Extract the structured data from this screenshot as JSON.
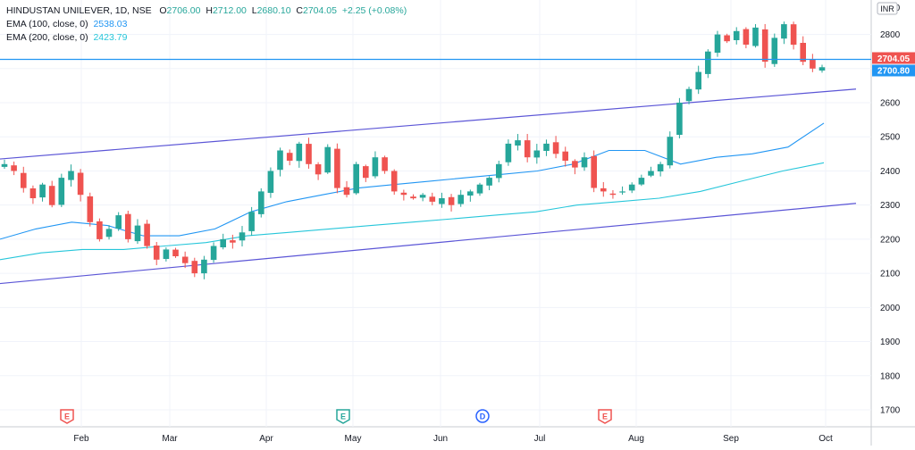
{
  "legend": {
    "symbol": "HINDUSTAN UNILEVER, 1D, NSE",
    "open_label": "O",
    "open": "2706.00",
    "high_label": "H",
    "high": "2712.00",
    "low_label": "L",
    "low": "2680.10",
    "close_label": "C",
    "close": "2704.05",
    "change": "+2.25 (+0.08%)",
    "ema100_label": "EMA (100, close, 0)",
    "ema100_value": "2538.03",
    "ema200_label": "EMA (200, close, 0)",
    "ema200_value": "2423.79"
  },
  "currency": "INR",
  "colors": {
    "up": "#26a69a",
    "down": "#ef5350",
    "ema100": "#2196f3",
    "ema200": "#26c6da",
    "channel": "#5b55d6",
    "price_line": "#2196f3",
    "price_badge": "#ef5350",
    "hline_badge": "#2196f3"
  },
  "chart_data": {
    "type": "candlestick",
    "symbol": "HINDUSTAN UNILEVER",
    "interval": "1D",
    "exchange": "NSE",
    "x_ticks": [
      "Feb",
      "Mar",
      "Apr",
      "May",
      "Jun",
      "Jul",
      "Aug",
      "Sep",
      "Oct"
    ],
    "y_ticks": [
      1700,
      1800,
      1900,
      2000,
      2100,
      2200,
      2300,
      2400,
      2500,
      2600,
      2700,
      2800
    ],
    "ylim": [
      1660,
      2880
    ],
    "last_price": "2704.05",
    "horizontal_line_value": "2700.80",
    "ohlc_close_path": [
      2420,
      2400,
      2350,
      2320,
      2360,
      2300,
      2380,
      2400,
      2330,
      2250,
      2200,
      2230,
      2270,
      2200,
      2240,
      2180,
      2140,
      2170,
      2150,
      2130,
      2100,
      2140,
      2180,
      2200,
      2190,
      2220,
      2280,
      2340,
      2400,
      2460,
      2430,
      2480,
      2420,
      2390,
      2470,
      2350,
      2330,
      2420,
      2380,
      2440,
      2400,
      2340,
      2330,
      2320,
      2330,
      2310,
      2320,
      2300,
      2330,
      2340,
      2360,
      2380,
      2420,
      2480,
      2490,
      2440,
      2460,
      2480,
      2450,
      2430,
      2410,
      2440,
      2350,
      2340,
      2330,
      2340,
      2360,
      2380,
      2400,
      2420,
      2500,
      2600,
      2640,
      2690,
      2750,
      2800,
      2780,
      2810,
      2770,
      2820,
      2720,
      2790,
      2830,
      2770,
      2720,
      2700,
      2704
    ],
    "series": [
      {
        "name": "EMA (100, close, 0)",
        "last_value": 2538.03,
        "values": [
          2200,
          2230,
          2250,
          2240,
          2210,
          2210,
          2230,
          2280,
          2310,
          2330,
          2350,
          2360,
          2370,
          2380,
          2390,
          2400,
          2420,
          2460,
          2460,
          2420,
          2440,
          2450,
          2470,
          2540
        ]
      },
      {
        "name": "EMA (200, close, 0)",
        "last_value": 2423.79,
        "values": [
          2140,
          2160,
          2170,
          2170,
          2180,
          2190,
          2210,
          2220,
          2230,
          2240,
          2250,
          2260,
          2270,
          2280,
          2300,
          2310,
          2320,
          2340,
          2370,
          2400,
          2424
        ]
      }
    ],
    "trendlines": [
      {
        "from": 2435,
        "to": 2640
      },
      {
        "from": 2070,
        "to": 2305
      }
    ],
    "event_markers": [
      "E",
      "E",
      "D",
      "E"
    ]
  }
}
